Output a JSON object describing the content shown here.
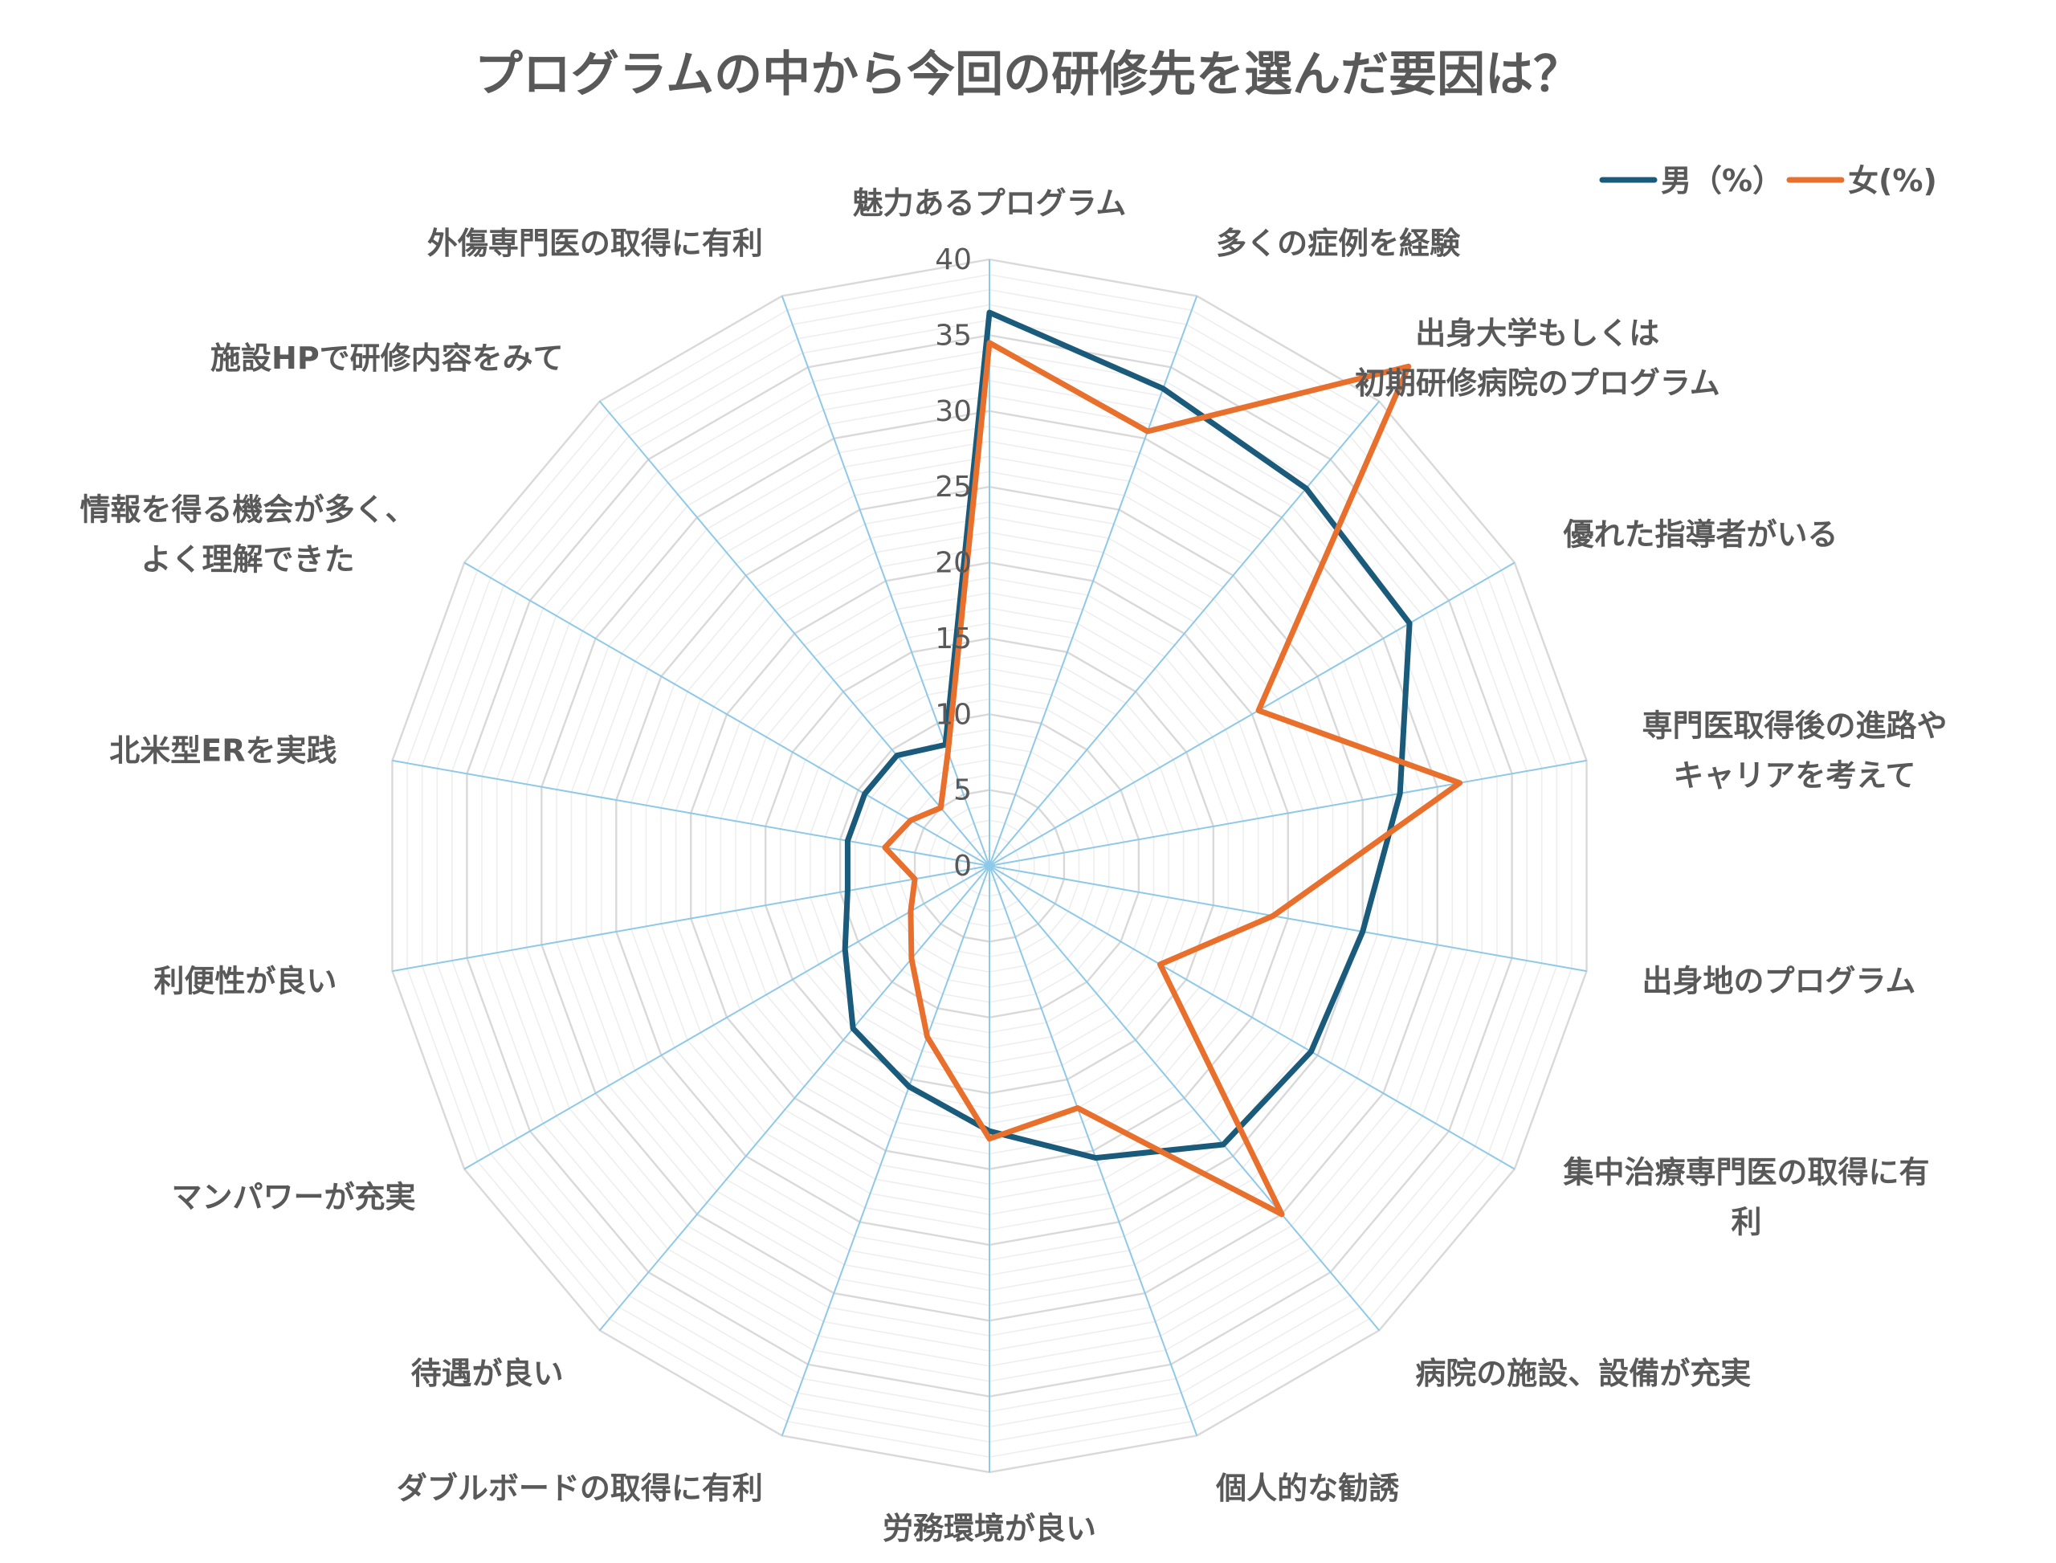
{
  "chart_data": {
    "type": "radar",
    "title": "プログラムの中から今回の研修先を選んだ要因は？",
    "rlim": [
      0,
      40
    ],
    "ticks": [
      "0",
      "5",
      "10",
      "15",
      "20",
      "25",
      "30",
      "35",
      "40"
    ],
    "grid": true,
    "legend_position": "top-right",
    "categories": [
      [
        "魅力あるプログラム"
      ],
      [
        "多くの症例を経験"
      ],
      [
        "出身大学もしくは",
        "初期研修病院のプログラム"
      ],
      [
        "優れた指導者がいる"
      ],
      [
        "専門医取得後の進路や",
        "キャリアを考えて"
      ],
      [
        "出身地のプログラム"
      ],
      [
        "集中治療専門医の取得に有",
        "利"
      ],
      [
        "病院の施設、設備が充実"
      ],
      [
        "個人的な勧誘"
      ],
      [
        "労務環境が良い"
      ],
      [
        "ダブルボードの取得に有利"
      ],
      [
        "待遇が良い"
      ],
      [
        "マンパワーが充実"
      ],
      [
        "利便性が良い"
      ],
      [
        "北米型ERを実践"
      ],
      [
        "情報を得る機会が多く、",
        "よく理解できた"
      ],
      [
        "施設HPで研修内容をみて"
      ],
      [
        "外傷専門医の取得に有利"
      ]
    ],
    "series": [
      {
        "name": "男（%）",
        "color": "#1a5a7a",
        "values": [
          36.5,
          33.5,
          32.5,
          32,
          27.5,
          25,
          24.5,
          24,
          20.5,
          17.5,
          15.5,
          14,
          11,
          9.5,
          9.5,
          9.5,
          9.5,
          8.5
        ]
      },
      {
        "name": "女(%)",
        "color": "#e86f2c",
        "values": [
          34.5,
          30.5,
          43,
          20.5,
          31.5,
          19,
          13,
          30,
          17,
          18,
          12,
          8,
          6,
          5,
          7,
          6,
          5,
          8
        ]
      }
    ]
  },
  "style": {
    "grid_ring_color": "#d9d9d9",
    "minor_ring_color": "#eeeeee",
    "spoke_color": "#8ec9e8",
    "text_color": "#595959"
  }
}
